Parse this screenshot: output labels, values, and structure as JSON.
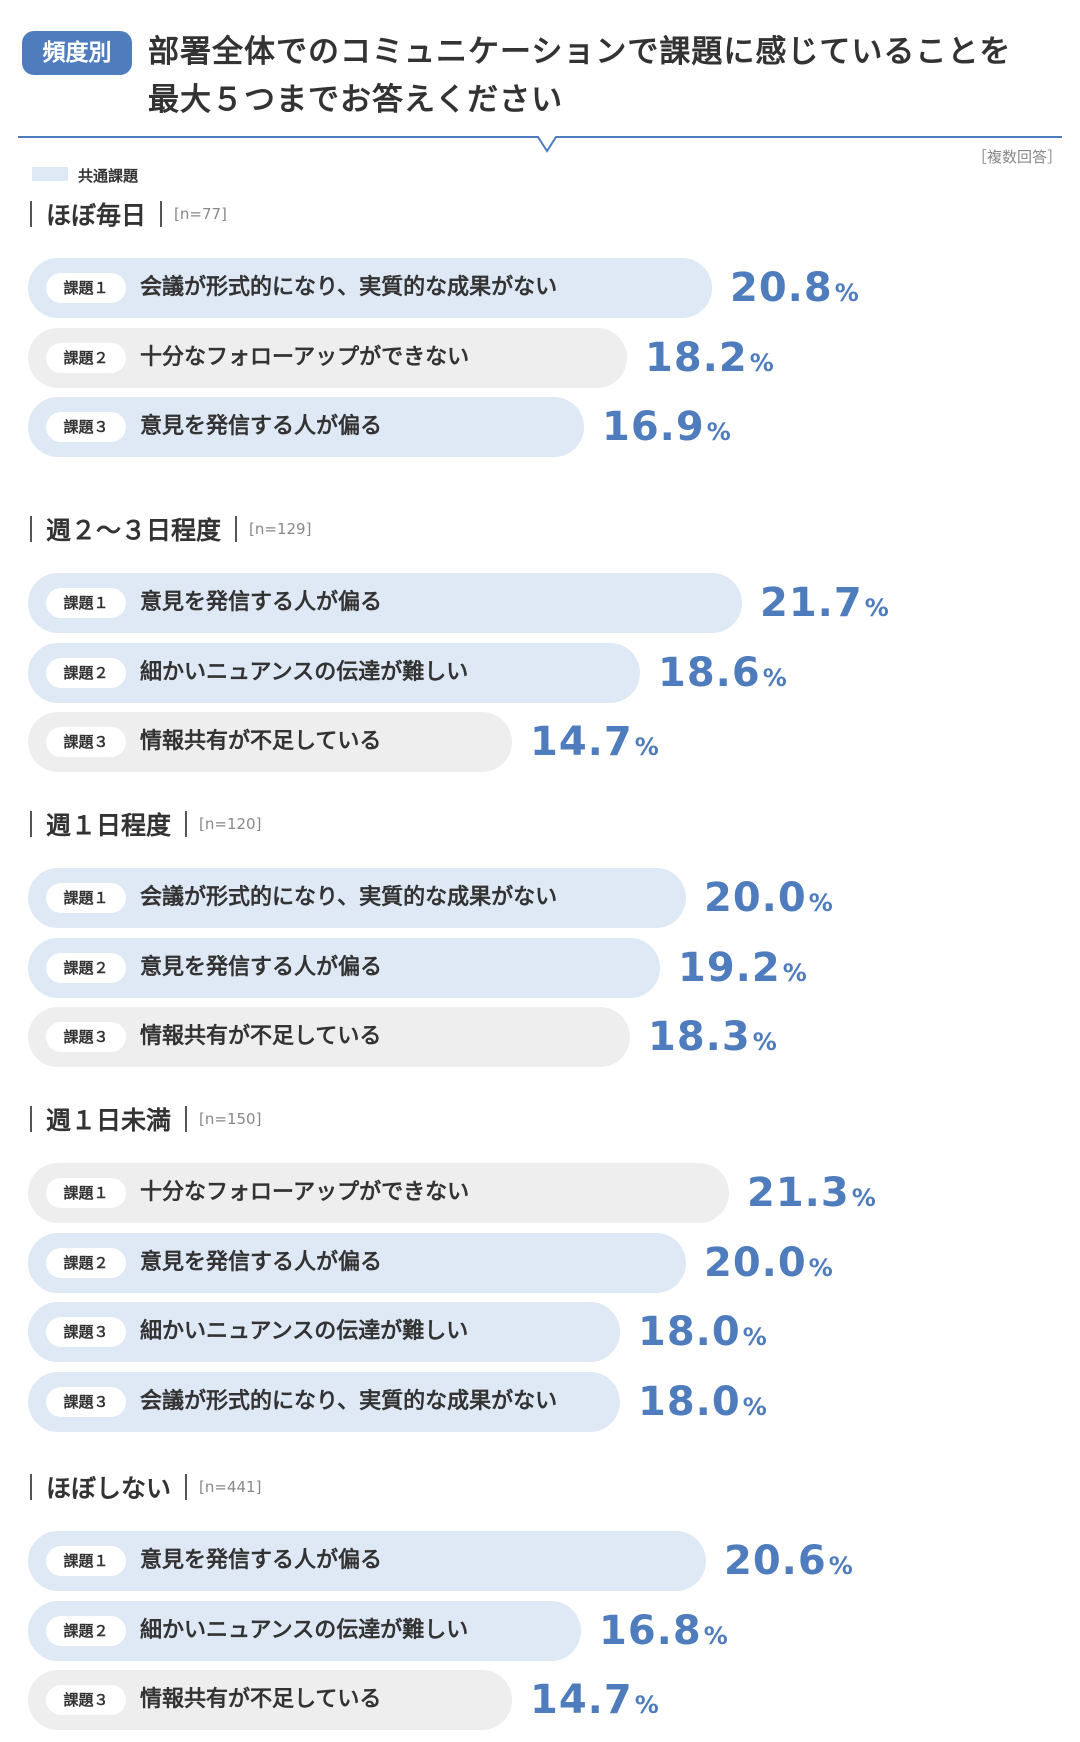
{
  "header": {
    "badge": "頻度別",
    "title_line1": "部署全体でのコミュニケーションで課題に感じていることを",
    "title_line2": "最大５つまでお答えください"
  },
  "legend": {
    "common_label": "共通課題"
  },
  "note": "［複数回答］",
  "colors": {
    "accent": "#4f7cbc",
    "common_bar": "#dfe8f5",
    "other_bar": "#eeeeee"
  },
  "chart_data": {
    "type": "bar",
    "orientation": "horizontal",
    "unit": "%",
    "groups": [
      {
        "name": "ほぼ毎日",
        "n": "[n=77]",
        "items": [
          {
            "rank": "課題１",
            "label": "会議が形式的になり、実質的な成果がない",
            "value": 20.8,
            "value_text": "20.8",
            "common": true
          },
          {
            "rank": "課題２",
            "label": "十分なフォローアップができない",
            "value": 18.2,
            "value_text": "18.2",
            "common": false
          },
          {
            "rank": "課題３",
            "label": "意見を発信する人が偏る",
            "value": 16.9,
            "value_text": "16.9",
            "common": true
          }
        ]
      },
      {
        "name": "週２〜３日程度",
        "n": "[n=129]",
        "items": [
          {
            "rank": "課題１",
            "label": "意見を発信する人が偏る",
            "value": 21.7,
            "value_text": "21.7",
            "common": true
          },
          {
            "rank": "課題２",
            "label": "細かいニュアンスの伝達が難しい",
            "value": 18.6,
            "value_text": "18.6",
            "common": true
          },
          {
            "rank": "課題３",
            "label": "情報共有が不足している",
            "value": 14.7,
            "value_text": "14.7",
            "common": false
          }
        ]
      },
      {
        "name": "週１日程度",
        "n": "[n=120]",
        "items": [
          {
            "rank": "課題１",
            "label": "会議が形式的になり、実質的な成果がない",
            "value": 20.0,
            "value_text": "20.0",
            "common": true
          },
          {
            "rank": "課題２",
            "label": "意見を発信する人が偏る",
            "value": 19.2,
            "value_text": "19.2",
            "common": true
          },
          {
            "rank": "課題３",
            "label": "情報共有が不足している",
            "value": 18.3,
            "value_text": "18.3",
            "common": false
          }
        ]
      },
      {
        "name": "週１日未満",
        "n": "[n=150]",
        "items": [
          {
            "rank": "課題１",
            "label": "十分なフォローアップができない",
            "value": 21.3,
            "value_text": "21.3",
            "common": false
          },
          {
            "rank": "課題２",
            "label": "意見を発信する人が偏る",
            "value": 20.0,
            "value_text": "20.0",
            "common": true
          },
          {
            "rank": "課題３",
            "label": "細かいニュアンスの伝達が難しい",
            "value": 18.0,
            "value_text": "18.0",
            "common": true
          },
          {
            "rank": "課題３",
            "label": "会議が形式的になり、実質的な成果がない",
            "value": 18.0,
            "value_text": "18.0",
            "common": true
          }
        ]
      },
      {
        "name": "ほぼしない",
        "n": "[n=441]",
        "items": [
          {
            "rank": "課題１",
            "label": "意見を発信する人が偏る",
            "value": 20.6,
            "value_text": "20.6",
            "common": true
          },
          {
            "rank": "課題２",
            "label": "細かいニュアンスの伝達が難しい",
            "value": 16.8,
            "value_text": "16.8",
            "common": true
          },
          {
            "rank": "課題３",
            "label": "情報共有が不足している",
            "value": 14.7,
            "value_text": "14.7",
            "common": false
          }
        ]
      }
    ]
  }
}
